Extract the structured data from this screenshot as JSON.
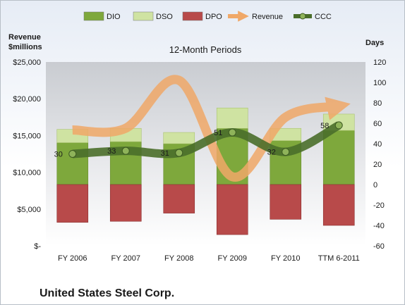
{
  "chart_data": {
    "type": "bar",
    "title": "12-Month Periods",
    "company": "United States Steel Corp.",
    "left_axis_label_line1": "Revenue",
    "left_axis_label_line2": "$millions",
    "right_axis_label": "Days",
    "categories": [
      "FY 2006",
      "FY 2007",
      "FY 2008",
      "FY 2009",
      "FY 2010",
      "TTM 6-2011"
    ],
    "left_axis": {
      "ylim": [
        0,
        25000
      ],
      "ticks": [
        0,
        5000,
        10000,
        15000,
        20000,
        25000
      ],
      "tick_labels": [
        "$-",
        "$5,000",
        "$10,000",
        "$15,000",
        "$20,000",
        "$25,000"
      ]
    },
    "right_axis": {
      "ylim": [
        -60,
        120
      ],
      "ticks": [
        -60,
        -40,
        -20,
        0,
        20,
        40,
        60,
        80,
        100,
        120
      ]
    },
    "series": [
      {
        "name": "DIO",
        "values": [
          41,
          42,
          40,
          55,
          43,
          53
        ],
        "color": "#7ea83c"
      },
      {
        "name": "DSO",
        "values": [
          13,
          13,
          11,
          20,
          12,
          16
        ],
        "color": "#cfe3a2"
      },
      {
        "name": "DPO",
        "values": [
          -37,
          -36,
          -28,
          -49,
          -34,
          -40
        ],
        "color": "#b84a4a"
      },
      {
        "name": "Revenue",
        "values": [
          15750,
          16000,
          22500,
          9400,
          17500,
          19000
        ],
        "color": "#f0a868"
      },
      {
        "name": "CCC",
        "values": [
          30,
          33,
          31,
          51,
          32,
          58
        ],
        "color": "#4a6e2a"
      }
    ],
    "data_labels": [
      "30",
      "33",
      "31",
      "51",
      "32",
      "58"
    ],
    "legend_position": "top",
    "grid": false
  }
}
